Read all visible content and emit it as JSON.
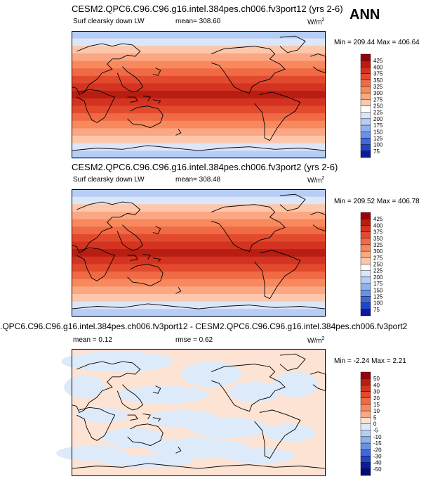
{
  "season": "ANN",
  "panels": [
    {
      "title": "CESM2.QPC6.C96.C96.g16.intel.384pes.ch006.fv3port12 (yrs 2-6)",
      "left_label": "Surf clearsky down LW",
      "center_label": "mean= 308.60",
      "units_base": "W/m",
      "units_exp": "2",
      "minmax": "Min = 209.44 Max = 406.64",
      "colorbar": {
        "levels": [
          "425",
          "400",
          "375",
          "350",
          "325",
          "300",
          "275",
          "250",
          "225",
          "200",
          "175",
          "150",
          "125",
          "100",
          "75"
        ],
        "colors": [
          "#99000d",
          "#b81d12",
          "#d33320",
          "#e24a2e",
          "#ef6a45",
          "#f8895d",
          "#fca784",
          "#fdc7ab",
          "#ffffff",
          "#dbe6f9",
          "#b6cdf5",
          "#8fb2ef",
          "#6891e8",
          "#3f68dc",
          "#1f45c8",
          "#0b1a9e"
        ]
      }
    },
    {
      "title": "CESM2.QPC6.C96.C96.g16.intel.384pes.ch006.fv3port2 (yrs 2-6)",
      "left_label": "Surf clearsky down LW",
      "center_label": "mean= 308.48",
      "units_base": "W/m",
      "units_exp": "2",
      "minmax": "Min = 209.52 Max = 406.78",
      "colorbar": {
        "levels": [
          "425",
          "400",
          "375",
          "350",
          "325",
          "300",
          "275",
          "250",
          "225",
          "200",
          "175",
          "150",
          "125",
          "100",
          "75"
        ],
        "colors": [
          "#99000d",
          "#b81d12",
          "#d33320",
          "#e24a2e",
          "#ef6a45",
          "#f8895d",
          "#fca784",
          "#fdc7ab",
          "#ffffff",
          "#dbe6f9",
          "#b6cdf5",
          "#8fb2ef",
          "#6891e8",
          "#3f68dc",
          "#1f45c8",
          "#0b1a9e"
        ]
      }
    },
    {
      "title": ".QPC6.C96.C96.g16.intel.384pes.ch006.fv3port12 - CESM2.QPC6.C96.C96.g16.intel.384pes.ch006.fv3port2",
      "left_label": "mean =  0.12",
      "center_label": "rmse =  0.62",
      "units_base": "W/m",
      "units_exp": "2",
      "minmax": "Min = -2.24 Max =  2.21",
      "colorbar": {
        "levels": [
          "50",
          "40",
          "30",
          "20",
          "15",
          "10",
          "5",
          "0",
          "-5",
          "-10",
          "-15",
          "-20",
          "-30",
          "-40",
          "-50"
        ],
        "colors": [
          "#99000d",
          "#b81d12",
          "#d33320",
          "#e24a2e",
          "#ef6a45",
          "#f8895d",
          "#fca784",
          "#fde3d3",
          "#ddeaf9",
          "#b6cdf5",
          "#8fb2ef",
          "#6891e8",
          "#3f68dc",
          "#1f45c8",
          "#0b1a9e",
          "#000c78"
        ]
      }
    }
  ],
  "map_colors": {
    "field_bands": [
      "#b6cdf5",
      "#dbe6f9",
      "#fdc7ab",
      "#fca784",
      "#f8895d",
      "#ef6a45",
      "#e24a2e",
      "#d33320",
      "#b81d12",
      "#d33320",
      "#e24a2e",
      "#ef6a45",
      "#f8895d",
      "#fca784",
      "#fdc7ab",
      "#dbe6f9",
      "#b6cdf5"
    ],
    "diff_base": "#fde3d3",
    "diff_neg": "#ddeaf9"
  }
}
